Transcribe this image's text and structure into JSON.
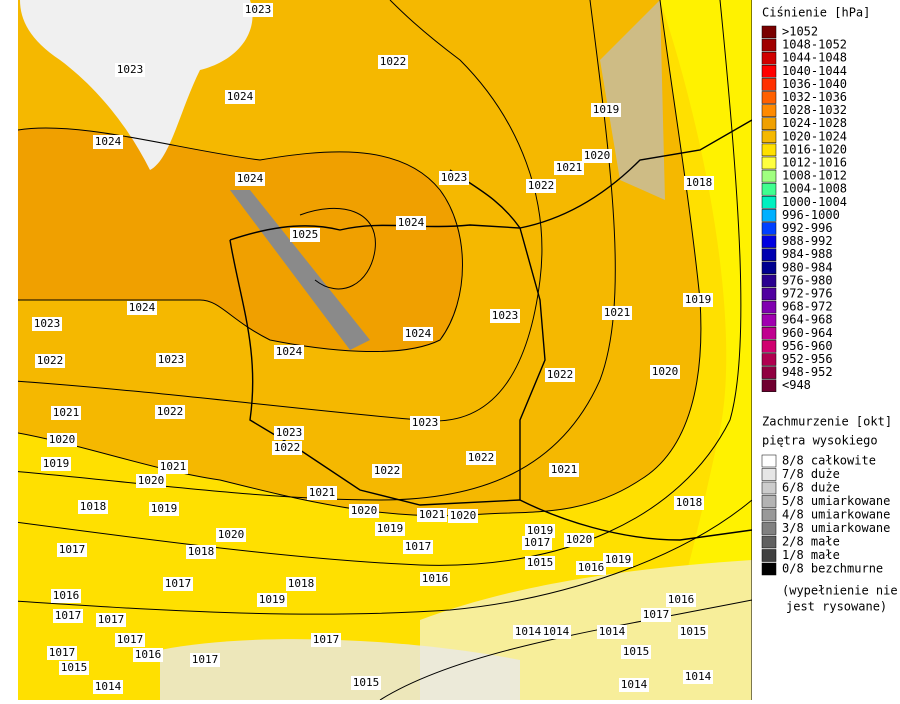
{
  "legend": {
    "pressure": {
      "title": "Ciśnienie [hPa]",
      "items": [
        {
          "label": ">1052",
          "color": "#7a0000"
        },
        {
          "label": "1048-1052",
          "color": "#a00000"
        },
        {
          "label": "1044-1048",
          "color": "#d00000"
        },
        {
          "label": "1040-1044",
          "color": "#ff0000"
        },
        {
          "label": "1036-1040",
          "color": "#ff3000"
        },
        {
          "label": "1032-1036",
          "color": "#ff6000"
        },
        {
          "label": "1028-1032",
          "color": "#ff8a00"
        },
        {
          "label": "1024-1028",
          "color": "#f0a000"
        },
        {
          "label": "1020-1024",
          "color": "#f5b800"
        },
        {
          "label": "1016-1020",
          "color": "#ffe000"
        },
        {
          "label": "1012-1016",
          "color": "#ffff40"
        },
        {
          "label": "1008-1012",
          "color": "#a0ff80"
        },
        {
          "label": "1004-1008",
          "color": "#40ff90"
        },
        {
          "label": "1000-1004",
          "color": "#00f0c0"
        },
        {
          "label": "996-1000",
          "color": "#00b0ff"
        },
        {
          "label": "992-996",
          "color": "#0040ff"
        },
        {
          "label": "988-992",
          "color": "#0000e0"
        },
        {
          "label": "984-988",
          "color": "#0000b0"
        },
        {
          "label": "980-984",
          "color": "#000090"
        },
        {
          "label": "976-980",
          "color": "#2a0090"
        },
        {
          "label": "972-976",
          "color": "#5000a0"
        },
        {
          "label": "968-972",
          "color": "#8000b0"
        },
        {
          "label": "964-968",
          "color": "#a000b0"
        },
        {
          "label": "960-964",
          "color": "#c00090"
        },
        {
          "label": "956-960",
          "color": "#d00070"
        },
        {
          "label": "952-956",
          "color": "#b00050"
        },
        {
          "label": "948-952",
          "color": "#900040"
        },
        {
          "label": "<948",
          "color": "#700030"
        }
      ]
    },
    "clouds": {
      "title": "Zachmurzenie [okt]",
      "subtitle": "piętra wysokiego",
      "items": [
        {
          "label": "8/8 całkowite",
          "color": "#ffffff"
        },
        {
          "label": "7/8 duże",
          "color": "#e6e6e6"
        },
        {
          "label": "6/8 duże",
          "color": "#cccccc"
        },
        {
          "label": "5/8 umiarkowane",
          "color": "#b3b3b3"
        },
        {
          "label": "4/8 umiarkowane",
          "color": "#999999"
        },
        {
          "label": "3/8 umiarkowane",
          "color": "#808080"
        },
        {
          "label": "2/8 małe",
          "color": "#606060"
        },
        {
          "label": "1/8 małe",
          "color": "#404040"
        },
        {
          "label": "0/8 bezchmurne",
          "color": "#000000"
        }
      ],
      "note": [
        "(wypełnienie nie",
        "jest rysowane)"
      ]
    }
  },
  "map": {
    "isobar_labels": [
      "1023",
      "1023",
      "1022",
      "1024",
      "1024",
      "1019",
      "1020",
      "1021",
      "1023",
      "1022",
      "1018",
      "1024",
      "1024",
      "1025",
      "1024",
      "1023",
      "1023",
      "1021",
      "1019",
      "1024",
      "1024",
      "1022",
      "1023",
      "1022",
      "1020",
      "1021",
      "1022",
      "1023",
      "1023",
      "1020",
      "1022",
      "1022",
      "1019",
      "1021",
      "1022",
      "1021",
      "1020",
      "1021",
      "1018",
      "1018",
      "1019",
      "1020",
      "1021",
      "1020",
      "1019",
      "1019",
      "1020",
      "1017",
      "1020",
      "1017",
      "1018",
      "1017",
      "1015",
      "1019",
      "1016",
      "1016",
      "1018",
      "1017",
      "1019",
      "1016",
      "1017",
      "1017",
      "1017",
      "1016",
      "1015",
      "1014",
      "1014",
      "1014",
      "1017",
      "1017",
      "1016",
      "1015",
      "1017",
      "1017",
      "1015",
      "1014",
      "1014",
      "1015",
      "1014"
    ]
  }
}
